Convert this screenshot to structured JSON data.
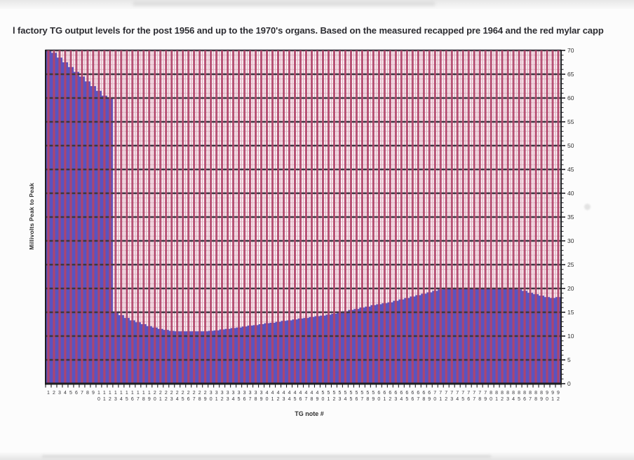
{
  "page": {
    "kind": "scanned chart printout"
  },
  "chart_data": {
    "type": "area",
    "title": "l factory TG output levels for the post 1956 and up to the 1970's organs. Based on the measured recapped pre 1964 and the red mylar capp",
    "xlabel": "TG note #",
    "ylabel": "Millivolts Peak to Peak",
    "ylim": [
      0,
      70
    ],
    "y_major_step": 5,
    "y_minor_step": 1,
    "y_tick_labels": [
      "0",
      "5",
      "10",
      "15",
      "20",
      "25",
      "30",
      "35",
      "40",
      "45",
      "50",
      "55",
      "60",
      "65",
      "70"
    ],
    "grid": "major horizontal line every 5 mV, minor horizontal line every 1 mV, red vertical gridline at every note",
    "legend": "none",
    "categories": [
      1,
      2,
      3,
      4,
      5,
      6,
      7,
      8,
      9,
      10,
      11,
      12,
      13,
      14,
      15,
      16,
      17,
      18,
      19,
      20,
      21,
      22,
      23,
      24,
      25,
      26,
      27,
      28,
      29,
      30,
      31,
      32,
      33,
      34,
      35,
      36,
      37,
      38,
      39,
      40,
      41,
      42,
      43,
      44,
      45,
      46,
      47,
      48,
      49,
      50,
      51,
      52,
      53,
      54,
      55,
      56,
      57,
      58,
      59,
      60,
      61,
      62,
      63,
      64,
      65,
      66,
      67,
      68,
      69,
      70,
      71,
      72,
      73,
      74,
      75,
      76,
      77,
      78,
      79,
      80,
      81,
      82,
      83,
      84,
      85,
      86,
      87,
      88,
      89,
      90,
      91,
      92
    ],
    "values": [
      70,
      69.5,
      68.5,
      67.5,
      66.5,
      65.5,
      64.5,
      63.5,
      62.5,
      61.5,
      60.5,
      60,
      15,
      14.4,
      13.8,
      13.3,
      12.9,
      12.5,
      12.1,
      11.8,
      11.5,
      11.3,
      11.1,
      11,
      11,
      11,
      11,
      11,
      11,
      11.1,
      11.2,
      11.4,
      11.5,
      11.7,
      11.8,
      12,
      12.2,
      12.3,
      12.5,
      12.7,
      12.8,
      13,
      13.2,
      13.3,
      13.5,
      13.7,
      13.8,
      14,
      14.2,
      14.3,
      14.5,
      14.7,
      15,
      15.2,
      15.5,
      15.7,
      16,
      16.2,
      16.5,
      16.7,
      16.9,
      17.1,
      17.4,
      17.7,
      18,
      18.3,
      18.6,
      18.9,
      19.2,
      19.5,
      19.8,
      20,
      20,
      20,
      20,
      20,
      20,
      20,
      20,
      20,
      20,
      20,
      20,
      20,
      19.8,
      19.5,
      19.1,
      18.8,
      18.5,
      18.2,
      18,
      18.2
    ],
    "colors": {
      "area_fill": "#5a54c0",
      "red_gridline": "#b2446a",
      "minor_v_gridline": "#e2aabe",
      "minor_h_gridline": "#ddc3cc",
      "major_h_gridline": "#3c3741",
      "axis": "#1e1e22",
      "tick_label": "#35353a"
    }
  }
}
